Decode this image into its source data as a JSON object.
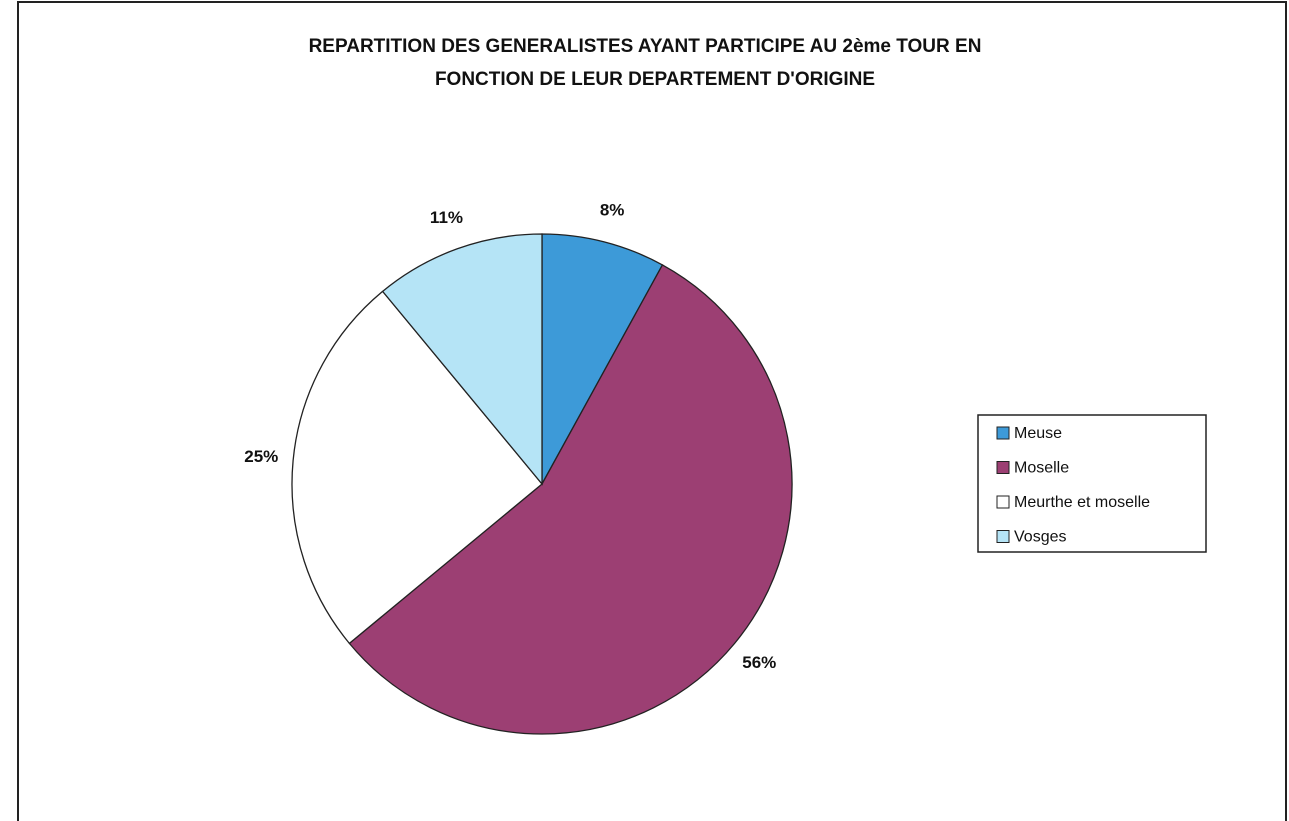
{
  "chart_data": {
    "type": "pie",
    "title": [
      "REPARTITION DES GENERALISTES AYANT PARTICIPE AU 2ème TOUR  EN",
      "FONCTION DE LEUR DEPARTEMENT D'ORIGINE"
    ],
    "categories": [
      "Meuse",
      "Moselle",
      "Meurthe et moselle",
      "Vosges"
    ],
    "values": [
      8,
      56,
      25,
      11
    ],
    "value_labels": [
      "8%",
      "56%",
      "25%",
      "11%"
    ],
    "colors": [
      "#3d9ad8",
      "#9c3f73",
      "#ffffff",
      "#b5e4f6"
    ],
    "legend": "right"
  }
}
